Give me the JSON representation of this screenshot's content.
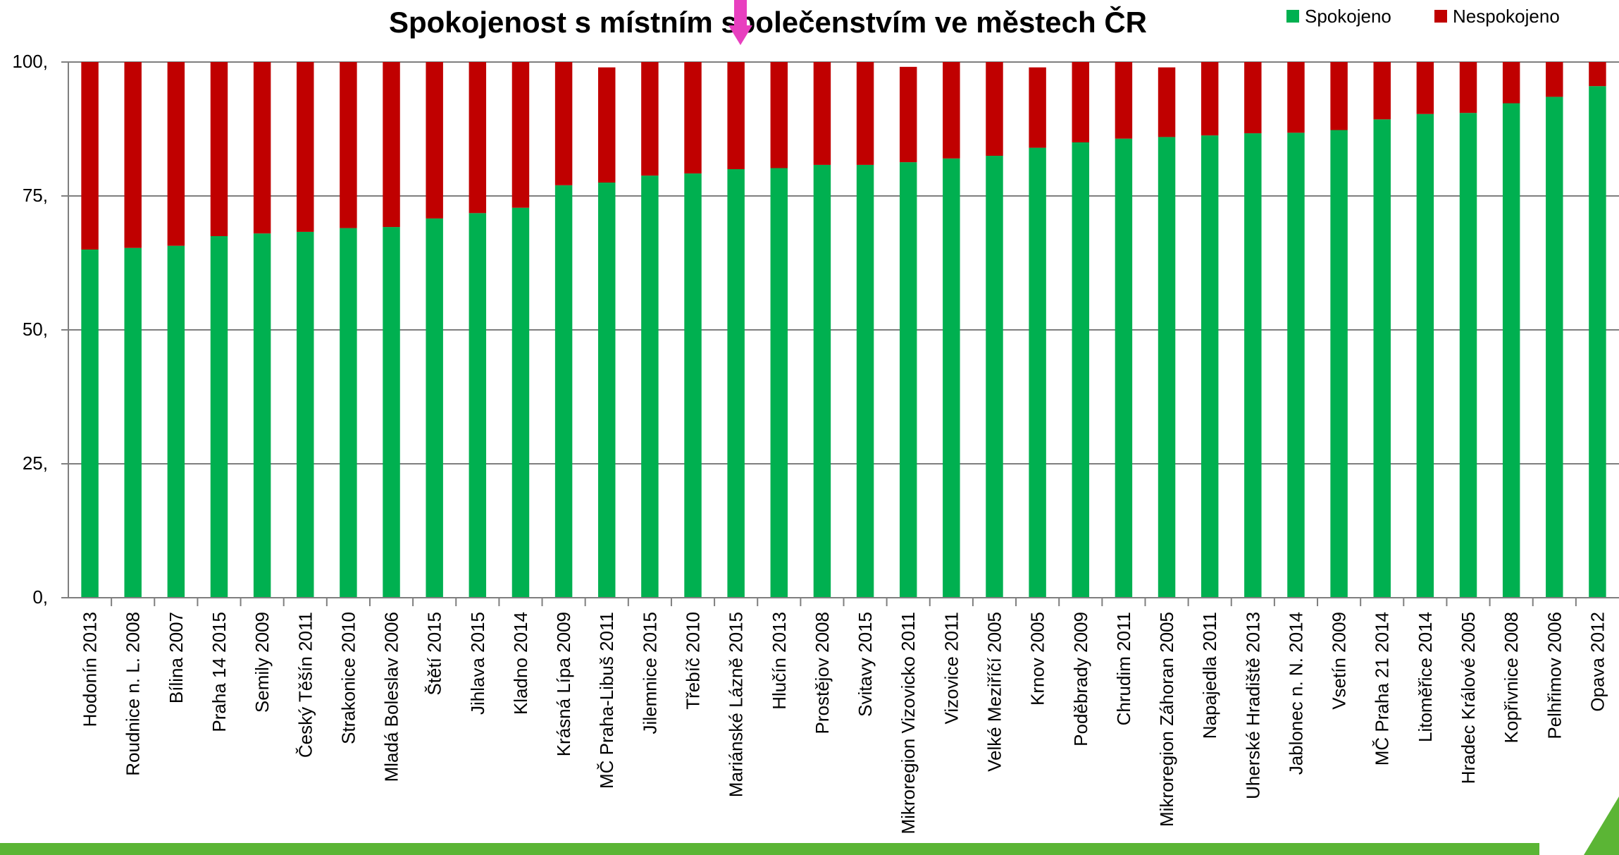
{
  "chart_data": {
    "type": "bar",
    "stacked": true,
    "title": "Spokojenost s místním společenstvím ve městech ČR",
    "xlabel": "",
    "ylabel": "",
    "ylim": [
      0,
      100
    ],
    "yticks": [
      "0,",
      "25,",
      "50,",
      "75,",
      "100,"
    ],
    "grid": true,
    "legend_position": "top-right",
    "categories": [
      "Hodonín 2013",
      "Roudnice n. L. 2008",
      "Bílina 2007",
      "Praha 14 2015",
      "Semily 2009",
      "Český Těšín 2011",
      "Strakonice 2010",
      "Mladá Boleslav 2006",
      "Štětí 2015",
      "Jihlava 2015",
      "Kladno 2014",
      "Krásná Lípa 2009",
      "MČ Praha-Libuš 2011",
      "Jilemnice 2015",
      "Třebíč 2010",
      "Mariánské Lázně 2015",
      "Hlučín 2013",
      "Prostějov 2008",
      "Svitavy 2015",
      "Mikroregion Vizovicko 2011",
      "Vizovice 2011",
      "Velké Meziříčí 2005",
      "Krnov 2005",
      "Poděbrady 2009",
      "Chrudim 2011",
      "Mikroregion Záhoran 2005",
      "Napajedla 2011",
      "Uherské Hradiště 2013",
      "Jablonec n. N. 2014",
      "Vsetín 2009",
      "MČ Praha 21 2014",
      "Litoměřice  2014",
      "Hradec Králové 2005",
      "Kopřivnice 2008",
      "Pelhřimov 2006",
      "Opava 2012"
    ],
    "series": [
      {
        "name": "Spokojeno",
        "color": "#00b050",
        "values": [
          65,
          65.3,
          65.7,
          67.5,
          68,
          68.3,
          69,
          69.2,
          70.8,
          71.8,
          72.8,
          77,
          77.5,
          78.8,
          79.2,
          80,
          80.2,
          80.8,
          80.8,
          81.3,
          82,
          82.5,
          84,
          85,
          85.7,
          86,
          86.3,
          86.7,
          86.8,
          87.3,
          89.3,
          90.3,
          90.5,
          92.3,
          93.5,
          95.5
        ]
      },
      {
        "name": "Nespokojeno",
        "color": "#c00000",
        "values": [
          35,
          34.7,
          34.3,
          32.5,
          32,
          31.7,
          31,
          30.8,
          29.2,
          28.2,
          27.2,
          23,
          21.5,
          21.2,
          20.8,
          20,
          19.8,
          19.2,
          19.2,
          17.8,
          18,
          17.5,
          15,
          15,
          14.3,
          13,
          13.7,
          13.3,
          13.2,
          12.7,
          10.7,
          9.7,
          9.5,
          7.7,
          6.5,
          4.5
        ]
      }
    ]
  },
  "decor": {
    "arrow_color": "#e83fbf",
    "footer_color": "#5bb535"
  }
}
